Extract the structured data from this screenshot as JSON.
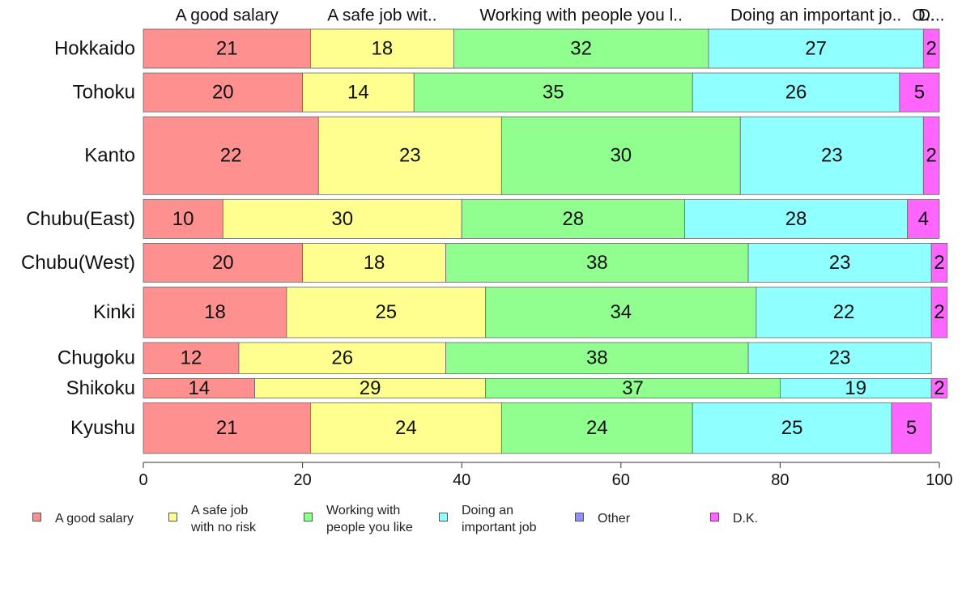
{
  "chart_data": {
    "type": "bar",
    "orientation": "horizontal",
    "stacked": true,
    "categories": [
      "Hokkaido",
      "Tohoku",
      "Kanto",
      "Chubu(East)",
      "Chubu(West)",
      "Kinki",
      "Chugoku",
      "Shikoku",
      "Kyushu"
    ],
    "series": [
      {
        "name": "A good salary",
        "color": "#ff9090",
        "values": [
          21,
          20,
          22,
          10,
          20,
          18,
          12,
          14,
          21
        ],
        "labels": [
          "21",
          "20",
          "22",
          "10",
          "20",
          "18",
          "12",
          "14",
          "21"
        ]
      },
      {
        "name": "A safe job with no risk",
        "color": "#ffff90",
        "values": [
          18,
          14,
          23,
          30,
          18,
          25,
          26,
          29,
          24
        ],
        "labels": [
          "18",
          "14",
          "23",
          "30",
          "18",
          "25",
          "26",
          "29",
          "24"
        ]
      },
      {
        "name": "Working with people you like",
        "color": "#90ff90",
        "values": [
          32,
          35,
          30,
          28,
          38,
          34,
          38,
          37,
          24
        ],
        "labels": [
          "32",
          "35",
          "30",
          "28",
          "38",
          "34",
          "38",
          "37",
          "24"
        ]
      },
      {
        "name": "Doing an important job",
        "color": "#90ffff",
        "values": [
          27,
          26,
          23,
          28,
          23,
          22,
          23,
          19,
          25
        ],
        "labels": [
          "27",
          "26",
          "23",
          "28",
          "23",
          "22",
          "23",
          "19",
          "25"
        ]
      },
      {
        "name": "Other",
        "color": "#9090ff",
        "values": [
          0,
          0,
          0,
          0,
          0,
          0,
          0,
          0,
          0
        ],
        "labels": [
          "",
          "",
          "",
          "",
          "",
          "",
          "",
          "",
          ""
        ]
      },
      {
        "name": "D.K.",
        "color": "#ff66ff",
        "values": [
          2,
          5,
          2,
          4,
          2,
          2,
          0,
          2,
          5
        ],
        "labels": [
          "2",
          "5",
          "2",
          "4",
          "2",
          "2",
          "",
          "2",
          "5"
        ]
      }
    ],
    "row_weights": [
      1,
      1,
      2,
      1,
      1,
      1.3,
      0.8,
      0.5,
      1.3
    ],
    "top_labels": [
      "A good salary",
      "A safe job wit..",
      "Working with people you l..",
      "Doing an important jo..",
      "O..",
      "D..."
    ],
    "xlim": [
      0,
      100
    ],
    "xticks": [
      "0",
      "20",
      "40",
      "60",
      "80",
      "100"
    ],
    "legend_position": "bottom",
    "legend": [
      {
        "label": "A good salary",
        "color": "#ff9090"
      },
      {
        "label": "A safe job\nwith no risk",
        "color": "#ffff90"
      },
      {
        "label": "Working with\npeople you like",
        "color": "#90ff90"
      },
      {
        "label": "Doing an\nimportant job",
        "color": "#90ffff"
      },
      {
        "label": "Other",
        "color": "#9090ff"
      },
      {
        "label": "D.K.",
        "color": "#ff66ff"
      }
    ]
  }
}
